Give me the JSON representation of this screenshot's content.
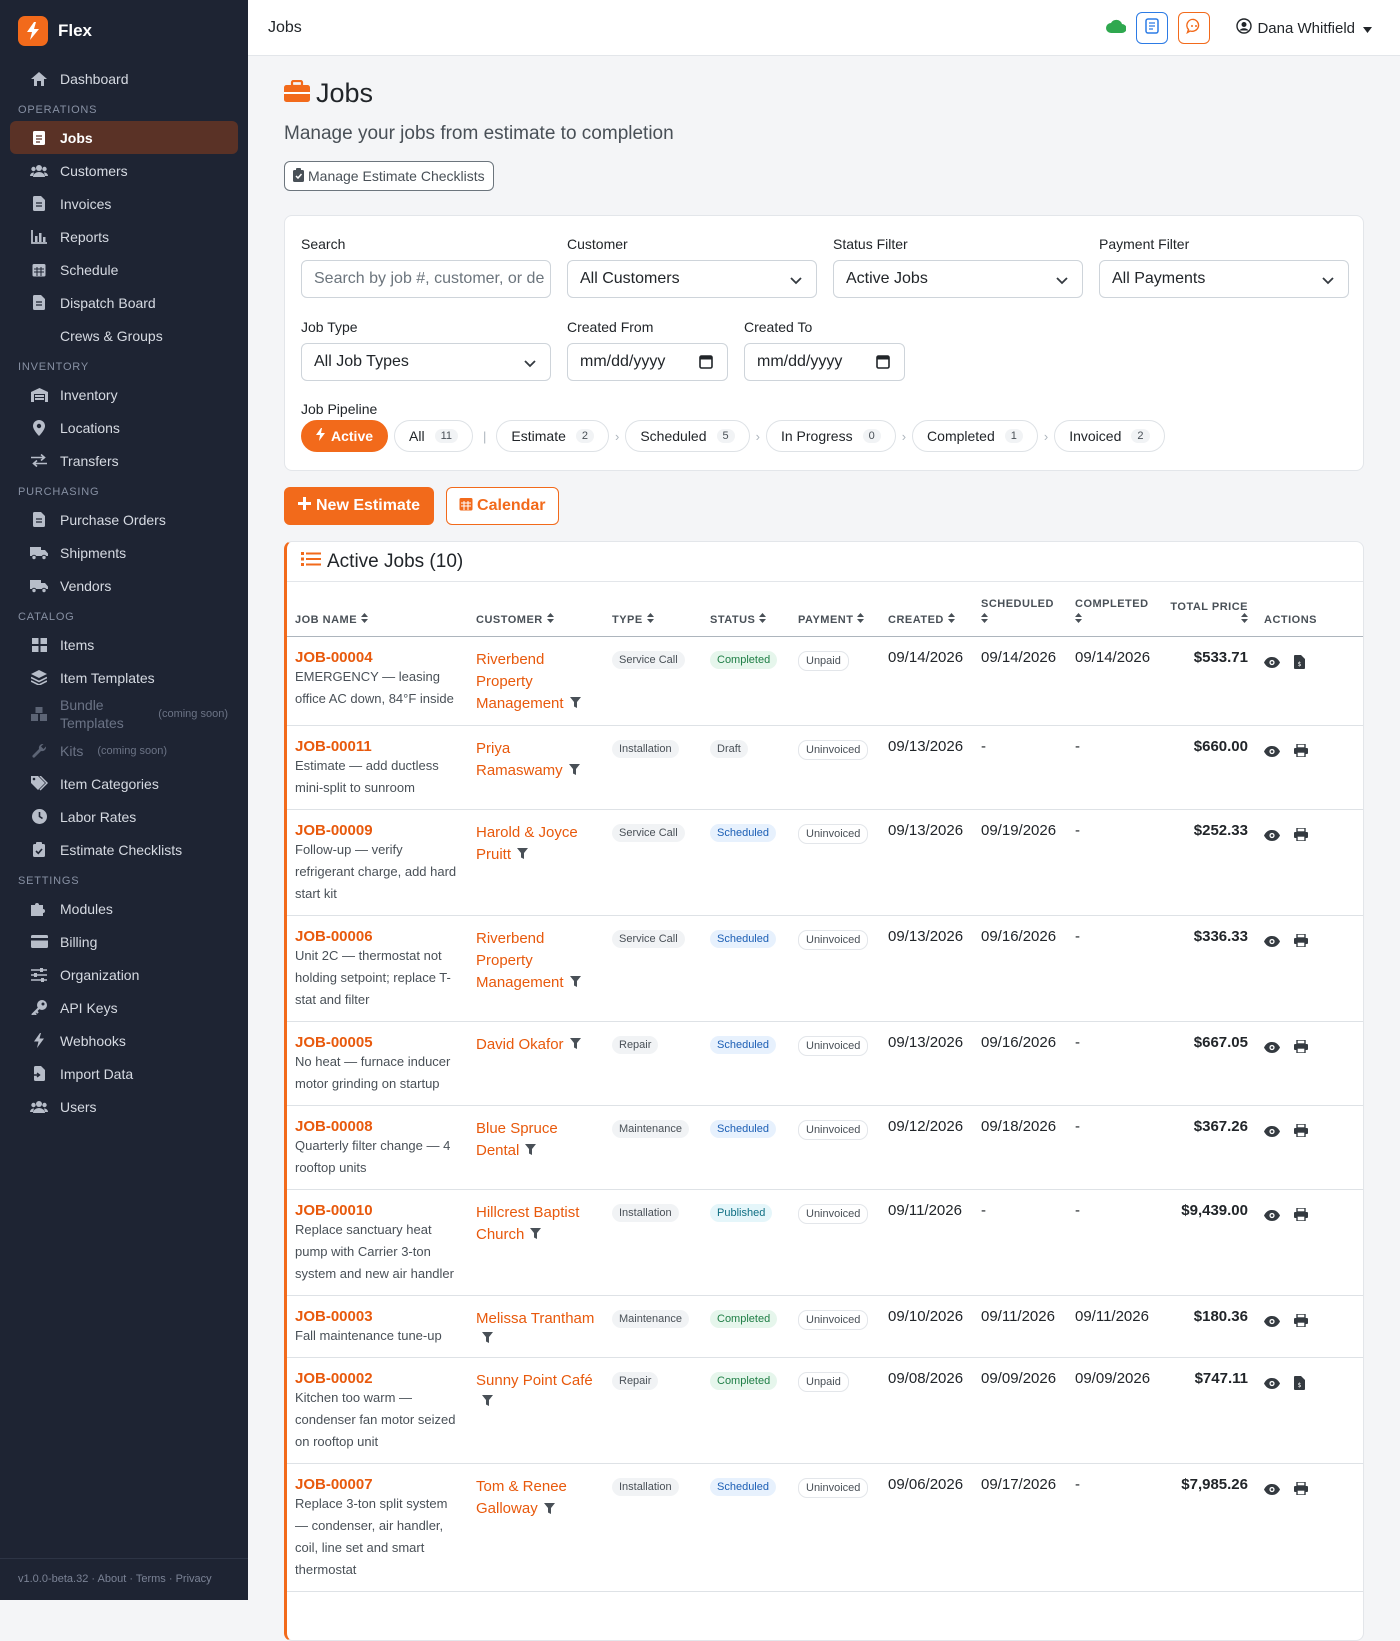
{
  "app": {
    "name": "Flex",
    "version": "v1.0.0-beta.32",
    "footer_links": [
      "About",
      "Terms",
      "Privacy"
    ]
  },
  "topbar": {
    "title": "Jobs",
    "user": "Dana Whitfield"
  },
  "sidebar": {
    "dashboard": "Dashboard",
    "operations_label": "OPERATIONS",
    "operations": [
      "Jobs",
      "Customers",
      "Invoices",
      "Reports",
      "Schedule",
      "Dispatch Board",
      "Crews & Groups"
    ],
    "inventory_label": "INVENTORY",
    "inventory": [
      "Inventory",
      "Locations",
      "Transfers"
    ],
    "purchasing_label": "PURCHASING",
    "purchasing": [
      "Purchase Orders",
      "Shipments",
      "Vendors"
    ],
    "catalog_label": "CATALOG",
    "catalog": [
      "Items",
      "Item Templates",
      "Bundle Templates",
      "Kits",
      "Item Categories",
      "Labor Rates",
      "Estimate Checklists"
    ],
    "coming_soon": "(coming soon)",
    "settings_label": "SETTINGS",
    "settings": [
      "Modules",
      "Billing",
      "Organization",
      "API Keys",
      "Webhooks",
      "Import Data",
      "Users"
    ]
  },
  "page": {
    "title": "Jobs",
    "subtitle": "Manage your jobs from estimate to completion",
    "checklist_button": "Manage Estimate Checklists"
  },
  "filters": {
    "search_label": "Search",
    "search_placeholder": "Search by job #, customer, or de",
    "customer_label": "Customer",
    "customer_value": "All Customers",
    "status_label": "Status Filter",
    "status_value": "Active Jobs",
    "payment_label": "Payment Filter",
    "payment_value": "All Payments",
    "jobtype_label": "Job Type",
    "jobtype_value": "All Job Types",
    "from_label": "Created From",
    "from_value": "mm/dd/yyyy",
    "to_label": "Created To",
    "to_value": "mm/dd/yyyy",
    "pipeline_label": "Job Pipeline",
    "pipeline": {
      "active": "Active",
      "all": "All",
      "all_count": "11",
      "estimate": "Estimate",
      "estimate_count": "2",
      "scheduled": "Scheduled",
      "scheduled_count": "5",
      "inprogress": "In Progress",
      "inprogress_count": "0",
      "completed": "Completed",
      "completed_count": "1",
      "invoiced": "Invoiced",
      "invoiced_count": "2"
    }
  },
  "actions": {
    "new_estimate": "New Estimate",
    "calendar": "Calendar"
  },
  "jobs": {
    "title": "Active Jobs (10)",
    "columns": [
      "JOB NAME",
      "CUSTOMER",
      "TYPE",
      "STATUS",
      "PAYMENT",
      "CREATED",
      "SCHEDULED",
      "COMPLETED",
      "TOTAL PRICE",
      "ACTIONS"
    ],
    "rows": [
      {
        "id": "JOB-00004",
        "desc": "EMERGENCY — leasing office AC down, 84°F inside",
        "customer": "Riverbend Property Management",
        "type": "Service Call",
        "status": "Completed",
        "payment": "Unpaid",
        "created": "09/14/2026",
        "scheduled": "09/14/2026",
        "completed": "09/14/2026",
        "price": "$533.71"
      },
      {
        "id": "JOB-00011",
        "desc": "Estimate — add ductless mini-split to sunroom",
        "customer": "Priya Ramaswamy",
        "type": "Installation",
        "status": "Draft",
        "payment": "Uninvoiced",
        "created": "09/13/2026",
        "scheduled": "-",
        "completed": "-",
        "price": "$660.00"
      },
      {
        "id": "JOB-00009",
        "desc": "Follow-up — verify refrigerant charge, add hard start kit",
        "customer": "Harold & Joyce Pruitt",
        "type": "Service Call",
        "status": "Scheduled",
        "payment": "Uninvoiced",
        "created": "09/13/2026",
        "scheduled": "09/19/2026",
        "completed": "-",
        "price": "$252.33"
      },
      {
        "id": "JOB-00006",
        "desc": "Unit 2C — thermostat not holding setpoint; replace T-stat and filter",
        "customer": "Riverbend Property Management",
        "type": "Service Call",
        "status": "Scheduled",
        "payment": "Uninvoiced",
        "created": "09/13/2026",
        "scheduled": "09/16/2026",
        "completed": "-",
        "price": "$336.33"
      },
      {
        "id": "JOB-00005",
        "desc": "No heat — furnace inducer motor grinding on startup",
        "customer": "David Okafor",
        "type": "Repair",
        "status": "Scheduled",
        "payment": "Uninvoiced",
        "created": "09/13/2026",
        "scheduled": "09/16/2026",
        "completed": "-",
        "price": "$667.05"
      },
      {
        "id": "JOB-00008",
        "desc": "Quarterly filter change — 4 rooftop units",
        "customer": "Blue Spruce Dental",
        "type": "Maintenance",
        "status": "Scheduled",
        "payment": "Uninvoiced",
        "created": "09/12/2026",
        "scheduled": "09/18/2026",
        "completed": "-",
        "price": "$367.26"
      },
      {
        "id": "JOB-00010",
        "desc": "Replace sanctuary heat pump with Carrier 3-ton system and new air handler",
        "customer": "Hillcrest Baptist Church",
        "type": "Installation",
        "status": "Published",
        "payment": "Uninvoiced",
        "created": "09/11/2026",
        "scheduled": "-",
        "completed": "-",
        "price": "$9,439.00"
      },
      {
        "id": "JOB-00003",
        "desc": "Fall maintenance tune-up",
        "customer": "Melissa Trantham",
        "type": "Maintenance",
        "status": "Completed",
        "payment": "Uninvoiced",
        "created": "09/10/2026",
        "scheduled": "09/11/2026",
        "completed": "09/11/2026",
        "price": "$180.36"
      },
      {
        "id": "JOB-00002",
        "desc": "Kitchen too warm — condenser fan motor seized on rooftop unit",
        "customer": "Sunny Point Café",
        "type": "Repair",
        "status": "Completed",
        "payment": "Unpaid",
        "created": "09/08/2026",
        "scheduled": "09/09/2026",
        "completed": "09/09/2026",
        "price": "$747.11"
      },
      {
        "id": "JOB-00007",
        "desc": "Replace 3-ton split system — condenser, air handler, coil, line set and smart thermostat",
        "customer": "Tom & Renee Galloway",
        "type": "Installation",
        "status": "Scheduled",
        "payment": "Uninvoiced",
        "created": "09/06/2026",
        "scheduled": "09/17/2026",
        "completed": "-",
        "price": "$7,985.26"
      }
    ]
  },
  "colors": {
    "accent": "#f26a1b",
    "sidebar": "#1e2433"
  }
}
